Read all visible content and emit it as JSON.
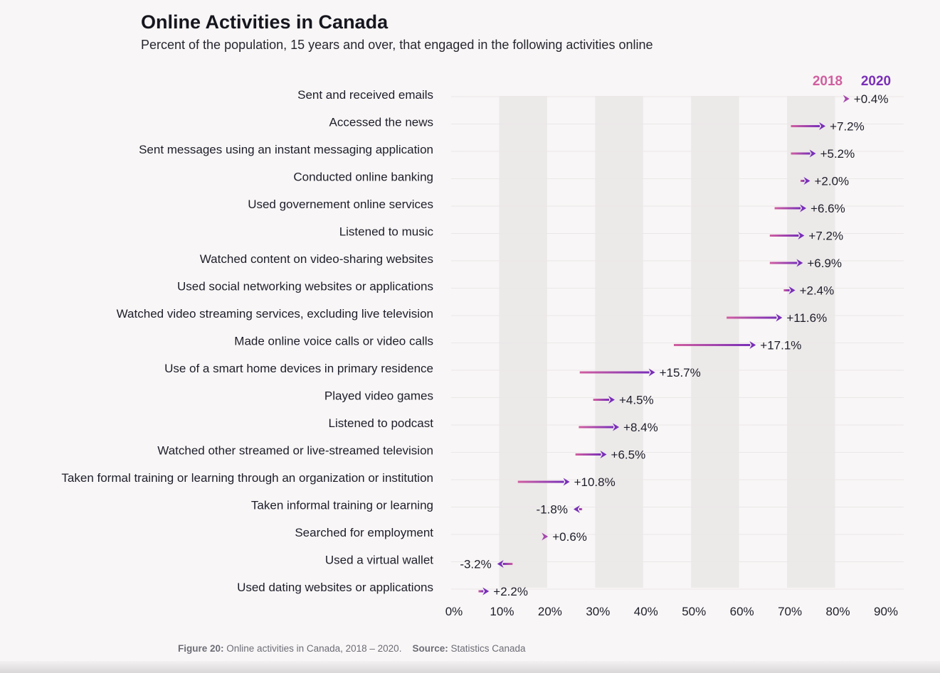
{
  "header": {
    "title": "Online Activities in Canada",
    "subtitle": "Percent of the population, 15 years and over, that engaged in the following activities online"
  },
  "colors": {
    "year_start": "#d05fa0",
    "year_end": "#7a2fb8",
    "shade_band": "#ece9e9",
    "background": "#f8f6f6"
  },
  "chart_data": {
    "type": "arrow-dot",
    "title": "Online Activities in Canada",
    "subtitle": "Percent of the population, 15 years and over, that engaged in the following activities online",
    "xlabel": "",
    "ylabel": "",
    "xlim": [
      0,
      90
    ],
    "x_ticks": [
      "0%",
      "10%",
      "20%",
      "30%",
      "40%",
      "50%",
      "60%",
      "70%",
      "80%",
      "90%"
    ],
    "legend": {
      "start_label": "2018",
      "end_label": "2020",
      "placement": "top-right"
    },
    "series": [
      {
        "name": "2018"
      },
      {
        "name": "2020"
      }
    ],
    "rows": [
      {
        "label": "Sent and received emails",
        "v2018": 82.6,
        "v2020": 83.0,
        "change": "+0.4%"
      },
      {
        "label": "Accessed the news",
        "v2018": 70.8,
        "v2020": 78.0,
        "change": "+7.2%"
      },
      {
        "label": "Sent messages using an instant messaging application",
        "v2018": 70.8,
        "v2020": 76.0,
        "change": "+5.2%"
      },
      {
        "label": "Conducted online banking",
        "v2018": 72.8,
        "v2020": 74.8,
        "change": "+2.0%"
      },
      {
        "label": "Used governement online services",
        "v2018": 67.4,
        "v2020": 74.0,
        "change": "+6.6%"
      },
      {
        "label": "Listened to music",
        "v2018": 66.4,
        "v2020": 73.6,
        "change": "+7.2%"
      },
      {
        "label": "Watched content on video-sharing websites",
        "v2018": 66.4,
        "v2020": 73.3,
        "change": "+6.9%"
      },
      {
        "label": "Used social networking websites or applications",
        "v2018": 69.3,
        "v2020": 71.7,
        "change": "+2.4%"
      },
      {
        "label": "Watched video streaming services, excluding live television",
        "v2018": 57.4,
        "v2020": 69.0,
        "change": "+11.6%"
      },
      {
        "label": "Made online voice calls or video calls",
        "v2018": 46.4,
        "v2020": 63.5,
        "change": "+17.1%"
      },
      {
        "label": "Use of a smart home devices in primary residence",
        "v2018": 26.8,
        "v2020": 42.5,
        "change": "+15.7%"
      },
      {
        "label": "Played video games",
        "v2018": 29.6,
        "v2020": 34.1,
        "change": "+4.5%"
      },
      {
        "label": "Listened to podcast",
        "v2018": 26.6,
        "v2020": 35.0,
        "change": "+8.4%"
      },
      {
        "label": "Watched other streamed or live-streamed television",
        "v2018": 25.9,
        "v2020": 32.4,
        "change": "+6.5%"
      },
      {
        "label": "Taken formal training or learning through an organization or institution",
        "v2018": 13.9,
        "v2020": 24.7,
        "change": "+10.8%"
      },
      {
        "label": "Taken informal training or learning",
        "v2018": 27.3,
        "v2020": 25.5,
        "change": "-1.8%"
      },
      {
        "label": "Searched for employment",
        "v2018": 19.6,
        "v2020": 20.2,
        "change": "+0.6%"
      },
      {
        "label": "Used a virtual wallet",
        "v2018": 12.8,
        "v2020": 9.6,
        "change": "-3.2%"
      },
      {
        "label": "Used dating websites or applications",
        "v2018": 5.7,
        "v2020": 7.9,
        "change": "+2.2%"
      }
    ]
  },
  "caption": {
    "figure_label": "Figure 20:",
    "figure_text": "Online activities in Canada, 2018 – 2020.",
    "source_label": "Source:",
    "source_text": "Statistics Canada"
  }
}
